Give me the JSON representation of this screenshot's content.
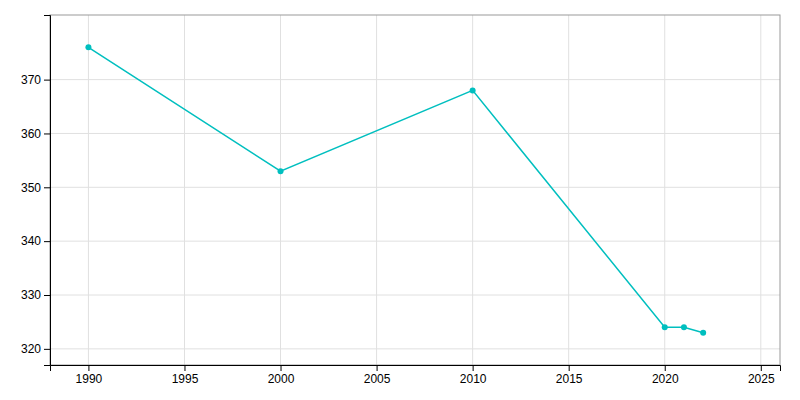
{
  "chart_data": {
    "type": "line",
    "x": [
      1990,
      2000,
      2010,
      2020,
      2021,
      2022
    ],
    "values": [
      376,
      353,
      368,
      324,
      324,
      323
    ],
    "color": "#00BFBF",
    "marker": "circle",
    "xlim": [
      1988,
      2026
    ],
    "ylim": [
      317,
      382
    ],
    "xticks": [
      1990,
      1995,
      2000,
      2005,
      2010,
      2015,
      2020,
      2025
    ],
    "yticks": [
      320,
      330,
      340,
      350,
      360,
      370
    ],
    "grid": true
  }
}
